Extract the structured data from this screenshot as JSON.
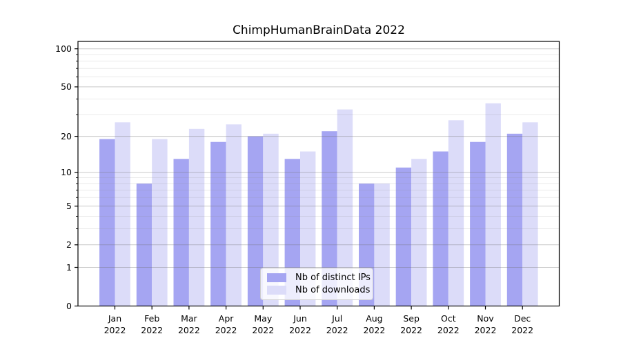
{
  "chart_data": {
    "type": "bar",
    "title": "ChimpHumanBrainData 2022",
    "categories": [
      "Jan",
      "Feb",
      "Mar",
      "Apr",
      "May",
      "Jun",
      "Jul",
      "Aug",
      "Sep",
      "Oct",
      "Nov",
      "Dec"
    ],
    "category_year": "2022",
    "series": [
      {
        "name": "Nb of distinct IPs",
        "color": "#a5a5f2",
        "values": [
          19,
          8,
          13,
          18,
          20,
          13,
          22,
          8,
          11,
          15,
          18,
          21
        ]
      },
      {
        "name": "Nb of downloads",
        "color": "#dcdcf9",
        "values": [
          26,
          19,
          23,
          25,
          21,
          15,
          33,
          8,
          13,
          27,
          37,
          26
        ]
      }
    ],
    "yscale": "log1p",
    "ylim": [
      0,
      114
    ],
    "xlabel": "",
    "ylabel": "",
    "y_major_ticks": [
      100,
      50,
      20,
      10,
      5,
      2,
      1,
      0
    ],
    "y_major_tick_labels": [
      "100",
      "50",
      "20",
      "10",
      "5",
      "2",
      "1",
      "0"
    ],
    "y_minor_gridlines": [
      3,
      4,
      6,
      7,
      8,
      9,
      30,
      40,
      60,
      70,
      80,
      90
    ],
    "grid": true,
    "legend": {
      "position": "lower center"
    },
    "colors": {
      "bar_ips": "#a5a5f2",
      "bar_downloads": "#dcdcf9",
      "major_grid": "rgba(110,110,110,0.38)",
      "minor_grid": "rgba(140,140,140,0.18)",
      "spine": "#000000",
      "background": "#ffffff"
    }
  }
}
